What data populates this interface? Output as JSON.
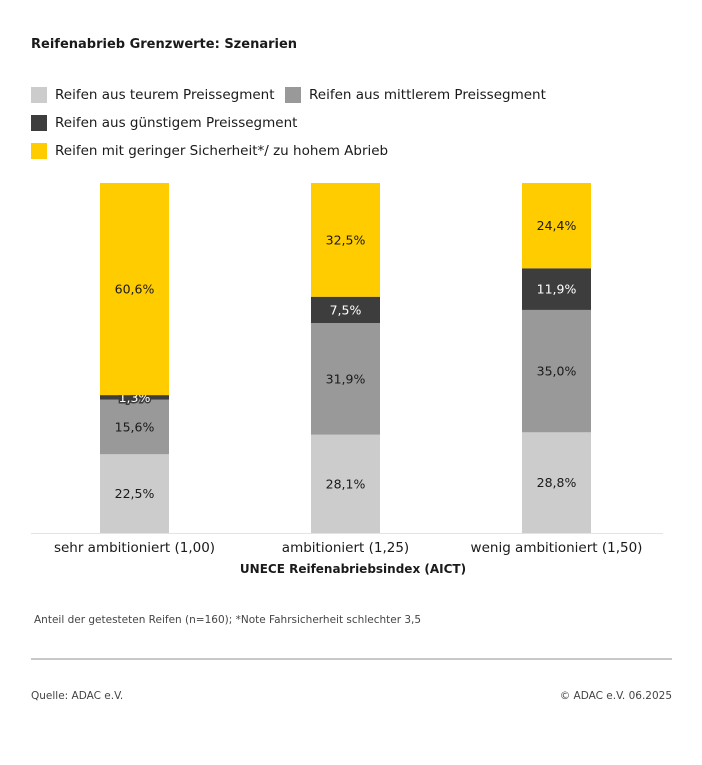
{
  "title": "Reifenabrieb Grenzwerte: Szenarien",
  "note": "Anteil der getesteten Reifen (n=160); *Note Fahrsicherheit schlechter 3,5",
  "source": "Quelle: ADAC e.V.",
  "copyright": "© ADAC e.V. 06.2025",
  "legend": [
    {
      "label": "Reifen aus teurem Preissegment",
      "color": "#cccccc"
    },
    {
      "label": "Reifen aus mittlerem Preissegment",
      "color": "#999999"
    },
    {
      "label": "Reifen aus günstigem Preissegment",
      "color": "#3d3d3d"
    },
    {
      "label": "Reifen mit geringer Sicherheit*/ zu hohem Abrieb",
      "color": "#ffcc00"
    }
  ],
  "chart_data": {
    "type": "bar",
    "stacked": true,
    "title": "Reifenabrieb Grenzwerte: Szenarien",
    "xlabel": "UNECE Reifenabriebsindex (AICT)",
    "ylabel": "",
    "ylim": [
      0,
      100
    ],
    "grid": false,
    "legend_position": "top",
    "categories": [
      "sehr ambitioniert (1,00)",
      "ambitioniert (1,25)",
      "wenig ambitioniert (1,50)"
    ],
    "series": [
      {
        "name": "Reifen aus teurem Preissegment",
        "color": "#cccccc",
        "text_color": "#1a1a1a",
        "values": [
          22.5,
          28.1,
          28.8
        ],
        "labels": [
          "22,5%",
          "28,1%",
          "28,8%"
        ]
      },
      {
        "name": "Reifen aus mittlerem Preissegment",
        "color": "#999999",
        "text_color": "#1a1a1a",
        "values": [
          15.6,
          31.9,
          35.0
        ],
        "labels": [
          "15,6%",
          "31,9%",
          "35,0%"
        ]
      },
      {
        "name": "Reifen aus günstigem Preissegment",
        "color": "#3d3d3d",
        "text_color": "#ffffff",
        "values": [
          1.3,
          7.5,
          11.9
        ],
        "labels": [
          "1,3%",
          "7,5%",
          "11,9%"
        ]
      },
      {
        "name": "Reifen mit geringer Sicherheit*/ zu hohem Abrieb",
        "color": "#ffcc00",
        "text_color": "#1a1a1a",
        "values": [
          60.6,
          32.5,
          24.4
        ],
        "labels": [
          "60,6%",
          "32,5%",
          "24,4%"
        ]
      }
    ]
  }
}
